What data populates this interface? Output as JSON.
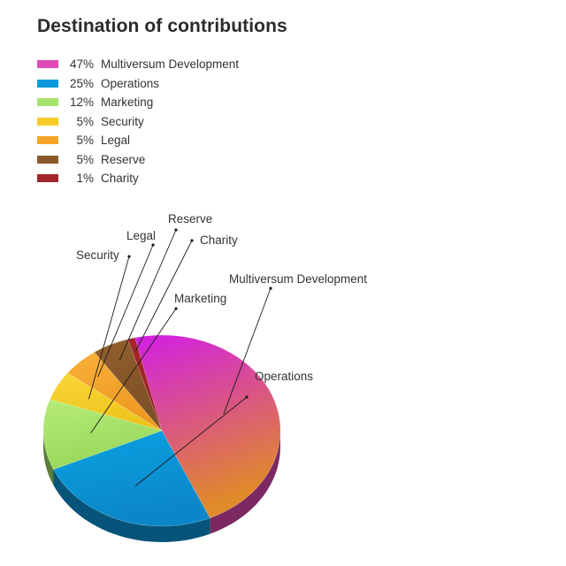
{
  "title": "Destination of contributions",
  "chart_data": {
    "type": "pie",
    "title": "Destination of contributions",
    "legend_position": "top-left",
    "slices": [
      {
        "label": "Multiversum Development",
        "pct_label": "47%",
        "value": 47,
        "color": "#e14bb3",
        "gradient": [
          "#d21ee6",
          "#e08a2a"
        ]
      },
      {
        "label": "Operations",
        "pct_label": "25%",
        "value": 25,
        "color": "#0a99dc",
        "gradient": [
          "#0aa2e2",
          "#0b86c8"
        ]
      },
      {
        "label": "Marketing",
        "pct_label": "12%",
        "value": 12,
        "color": "#a7e36c",
        "gradient": [
          "#b6ec7a",
          "#98d85a"
        ]
      },
      {
        "label": "Security",
        "pct_label": "5%",
        "value": 5,
        "color": "#f5cc2a",
        "gradient": [
          "#f8d638",
          "#eec41d"
        ]
      },
      {
        "label": "Legal",
        "pct_label": "5%",
        "value": 5,
        "color": "#f6a52a",
        "gradient": [
          "#f8b03a",
          "#ee9820"
        ]
      },
      {
        "label": "Reserve",
        "pct_label": "5%",
        "value": 5,
        "color": "#8a5a2c",
        "gradient": [
          "#93602e",
          "#7c4f25"
        ]
      },
      {
        "label": "Charity",
        "pct_label": "1%",
        "value": 1,
        "color": "#a3262a",
        "gradient": [
          "#a8282b",
          "#9a2226"
        ]
      }
    ]
  }
}
